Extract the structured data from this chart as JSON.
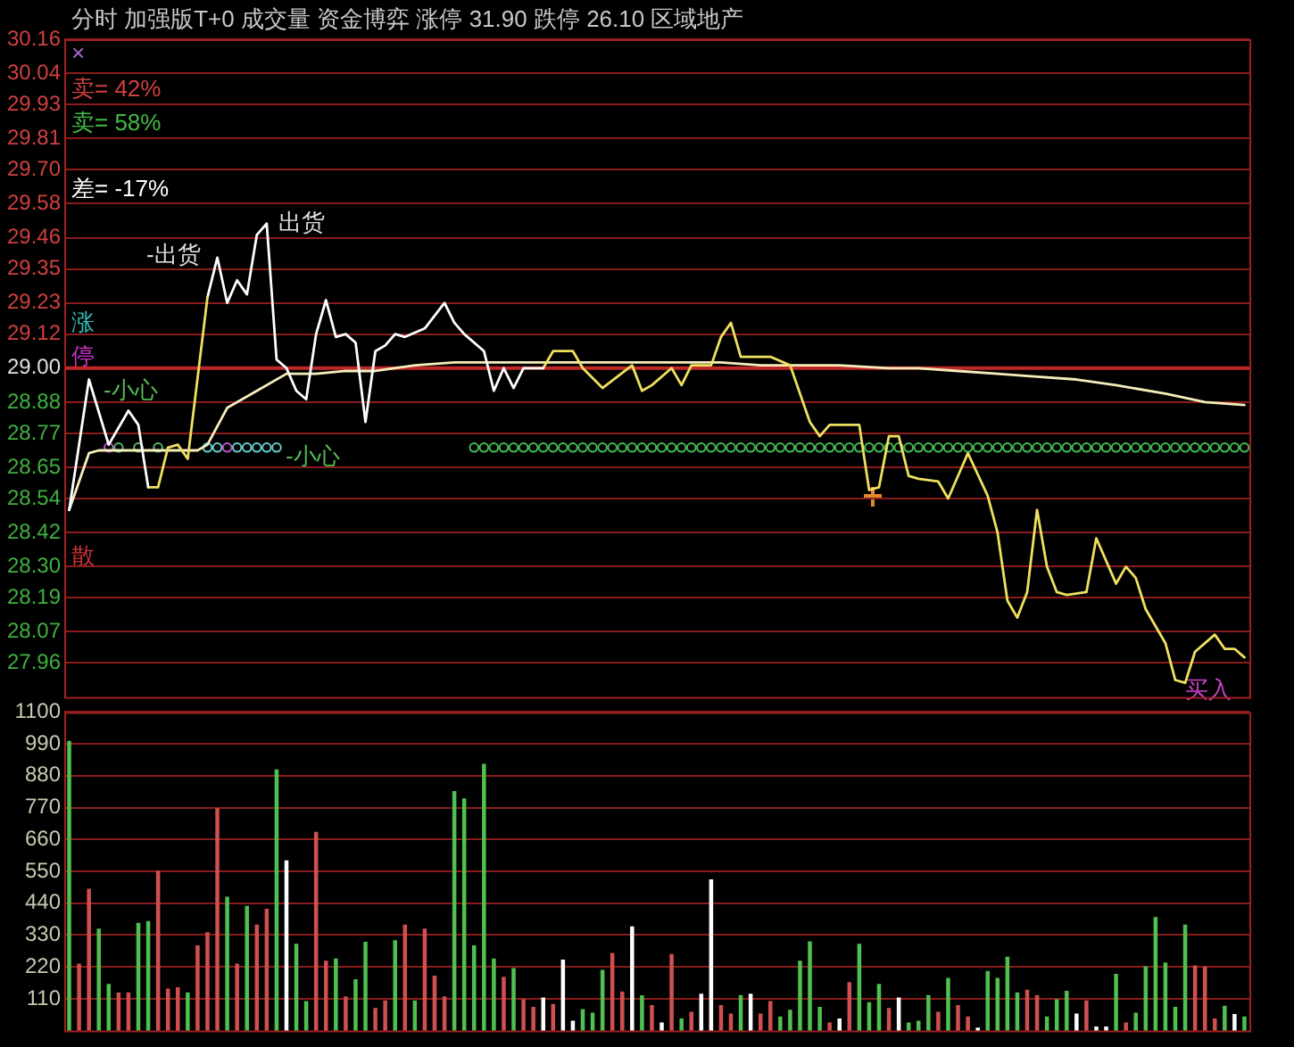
{
  "chart_data": [
    {
      "type": "line",
      "title": "分时 加强版T+0 成交量 资金博弈 涨停 31.90 跌停 26.10 区域地产",
      "categories": [
        null,
        null,
        null,
        null,
        null,
        null,
        null,
        null,
        null,
        null,
        null,
        null,
        null,
        null,
        null,
        null,
        null,
        null,
        null,
        null,
        null,
        null,
        null,
        null,
        null,
        null,
        null,
        null,
        null,
        null,
        null,
        null,
        null,
        null,
        null,
        null,
        null,
        null,
        null,
        null,
        null,
        null,
        null,
        null,
        null,
        null,
        null,
        null,
        null,
        null,
        null,
        null,
        null,
        null,
        null,
        null,
        null,
        null,
        null,
        null,
        null,
        null,
        null,
        null,
        null,
        null,
        null,
        null,
        null,
        null,
        null,
        null,
        null,
        null,
        null,
        null,
        null,
        null,
        null,
        null,
        null,
        null,
        null,
        null,
        null,
        null,
        null,
        null,
        null,
        null,
        null,
        null,
        null,
        null,
        null,
        null,
        null,
        null,
        null,
        null,
        null,
        null,
        null,
        null,
        null,
        null,
        null,
        null,
        null,
        null,
        null,
        null,
        null,
        null,
        null,
        null,
        null,
        null,
        null,
        null
      ],
      "series": [
        {
          "type": "line",
          "color": "#ffffff",
          "values": [
            28.5,
            null,
            28.96,
            null,
            28.73,
            null,
            28.85,
            28.8,
            28.58,
            null,
            null,
            null,
            null,
            null,
            null,
            null,
            null,
            null,
            null,
            null,
            null,
            null,
            null,
            null,
            null,
            null,
            null,
            null,
            null,
            null,
            null,
            null,
            null,
            null,
            null,
            null,
            null,
            null,
            null,
            null,
            null,
            null,
            null,
            null,
            null,
            null,
            null,
            null,
            null,
            null,
            null,
            null,
            null,
            null,
            null,
            null,
            null,
            null,
            null,
            null,
            null,
            null,
            null,
            null,
            null,
            null,
            null,
            null,
            null,
            null,
            null,
            null,
            null,
            null,
            null,
            null,
            null,
            null,
            null,
            null,
            null,
            null,
            null,
            null,
            null,
            null,
            null,
            null,
            null,
            null,
            null,
            null,
            null,
            null,
            null,
            null,
            null,
            null,
            null,
            null,
            null,
            null,
            null,
            null,
            null,
            null,
            null,
            null,
            null,
            null,
            null,
            null,
            null,
            null,
            null,
            null,
            null,
            null,
            null,
            null
          ]
        },
        {
          "type": "line",
          "color": "#f0e060",
          "values": [
            null,
            null,
            null,
            null,
            null,
            null,
            null,
            null,
            28.58,
            28.58,
            28.72,
            28.73,
            28.68,
            null,
            29.25,
            null,
            null,
            null,
            null,
            null,
            null,
            null,
            null,
            null,
            null,
            null,
            null,
            null,
            null,
            null,
            null,
            null,
            null,
            null,
            null,
            null,
            null,
            null,
            null,
            null,
            null,
            null,
            null,
            null,
            null,
            null,
            null,
            null,
            null,
            null,
            null,
            null,
            null,
            null,
            null,
            null,
            null,
            null,
            null,
            null,
            null,
            null,
            null,
            null,
            null,
            null,
            null,
            null,
            null,
            null,
            null,
            null,
            null,
            null,
            null,
            null,
            null,
            null,
            null,
            null,
            null,
            null,
            null,
            null,
            null,
            null,
            null,
            null,
            null,
            null,
            null,
            null,
            null,
            null,
            null,
            null,
            null,
            null,
            null,
            null,
            null,
            null,
            null,
            null,
            null,
            null,
            null,
            null,
            null,
            null,
            null,
            null,
            null,
            null,
            null,
            null,
            null,
            null,
            null,
            null
          ]
        },
        {
          "type": "line",
          "color": "#ffffff",
          "values": [
            null,
            null,
            null,
            null,
            null,
            null,
            null,
            null,
            null,
            null,
            null,
            null,
            null,
            null,
            29.25,
            29.39,
            29.23,
            29.31,
            29.26,
            29.47,
            29.51,
            29.03,
            29.0,
            28.92,
            28.89,
            29.12,
            29.24,
            29.11,
            29.12,
            29.09,
            28.81,
            29.06,
            29.08,
            29.12,
            29.11,
            null,
            29.14,
            null,
            29.23,
            29.16,
            29.12,
            null,
            29.06,
            28.92,
            29.0,
            28.93,
            29.0,
            null,
            29.0,
            null,
            null,
            null,
            null,
            null,
            null,
            null,
            null,
            null,
            null,
            null,
            null,
            null,
            null,
            null,
            null,
            null,
            null,
            null,
            null,
            null,
            null,
            null,
            null,
            null,
            null,
            null,
            null,
            null,
            null,
            null,
            null,
            null,
            null,
            null,
            null,
            null,
            null,
            null,
            null,
            null,
            null,
            null,
            null,
            null,
            null,
            null,
            null,
            null,
            null,
            null,
            null,
            null,
            null,
            null,
            null,
            null,
            null,
            null,
            null,
            null,
            null,
            null,
            null,
            null,
            null,
            null,
            null,
            null,
            null,
            null
          ]
        },
        {
          "type": "line",
          "color": "#f0e060",
          "values": [
            null,
            null,
            null,
            null,
            null,
            null,
            null,
            null,
            null,
            null,
            null,
            null,
            null,
            null,
            null,
            null,
            null,
            null,
            null,
            null,
            null,
            null,
            null,
            null,
            null,
            null,
            null,
            null,
            null,
            null,
            null,
            null,
            null,
            null,
            null,
            null,
            null,
            null,
            null,
            null,
            null,
            null,
            null,
            null,
            null,
            null,
            null,
            null,
            29.0,
            29.06,
            null,
            29.06,
            29.0,
            null,
            28.93,
            null,
            null,
            29.01,
            28.92,
            28.94,
            null,
            29.0,
            28.94,
            29.01,
            null,
            29.01,
            29.11,
            29.16,
            29.04,
            29.04,
            null,
            29.04,
            null,
            29.01,
            null,
            28.81,
            28.76,
            28.8,
            null,
            null,
            28.8,
            28.57,
            28.58,
            28.76,
            28.76,
            28.62,
            28.61,
            null,
            28.6,
            28.54,
            null,
            28.7,
            null,
            28.55,
            28.42,
            28.18,
            28.12,
            28.21,
            28.5,
            28.3,
            28.21,
            28.2,
            null,
            28.21,
            28.4,
            null,
            28.24,
            28.3,
            28.26,
            28.15,
            null,
            28.03,
            27.9,
            27.89,
            28.0,
            null,
            28.06,
            28.01,
            28.01,
            27.98
          ]
        },
        {
          "type": "line",
          "color": "#f5eebb",
          "values": [
            28.5,
            null,
            28.7,
            28.71,
            null,
            null,
            null,
            28.71,
            null,
            null,
            28.71,
            null,
            null,
            28.71,
            28.73,
            null,
            28.86,
            null,
            null,
            28.92,
            null,
            null,
            28.98,
            null,
            null,
            28.98,
            null,
            null,
            28.99,
            null,
            null,
            28.99,
            null,
            null,
            null,
            29.01,
            null,
            null,
            null,
            29.02,
            null,
            null,
            null,
            29.02,
            null,
            null,
            null,
            null,
            29.02,
            null,
            null,
            null,
            29.02,
            null,
            null,
            null,
            29.02,
            null,
            null,
            29.02,
            null,
            null,
            29.02,
            null,
            null,
            null,
            29.02,
            null,
            null,
            null,
            29.01,
            null,
            null,
            null,
            29.01,
            null,
            null,
            null,
            29.01,
            null,
            null,
            null,
            null,
            29.0,
            null,
            null,
            29.0,
            null,
            null,
            null,
            28.99,
            null,
            null,
            null,
            28.98,
            null,
            null,
            null,
            28.97,
            null,
            null,
            null,
            28.96,
            null,
            null,
            null,
            28.94,
            null,
            null,
            null,
            null,
            28.91,
            null,
            null,
            null,
            28.88,
            null,
            null,
            null,
            28.87
          ]
        },
        {
          "type": "scatter",
          "marker": "circle",
          "values": [
            null,
            null,
            null,
            null,
            28.72,
            28.72,
            null,
            28.72,
            null,
            28.72,
            null,
            null,
            null,
            null,
            28.72,
            28.72,
            28.72,
            28.72,
            28.72,
            28.72,
            28.72,
            28.72,
            null,
            null,
            null,
            null,
            null,
            null,
            null,
            null,
            null,
            null,
            null,
            null,
            null,
            null,
            null,
            null,
            null,
            null,
            null,
            null,
            null,
            null,
            null,
            null,
            null,
            null,
            null,
            null,
            null,
            null,
            null,
            null,
            null,
            null,
            null,
            null,
            null,
            null,
            null,
            null,
            null,
            null,
            null,
            null,
            null,
            null,
            null,
            null,
            null,
            null,
            null,
            null,
            null,
            null,
            null,
            null,
            null,
            null,
            null,
            null,
            null,
            null,
            null,
            null,
            null,
            null,
            null,
            null,
            null,
            null,
            null,
            null,
            null,
            null,
            null,
            null,
            null,
            null,
            null,
            null,
            null,
            null,
            null,
            null,
            null,
            null,
            null,
            null,
            null,
            null,
            null,
            null,
            null,
            null,
            null,
            null,
            null,
            null
          ],
          "colors": [
            null,
            null,
            null,
            null,
            "#bb55cc",
            "#55bb66",
            null,
            "#55bb66",
            null,
            "#55bb66",
            null,
            null,
            null,
            null,
            "#66cccc",
            "#66cccc",
            "#bb55cc",
            "#66cccc",
            "#66cccc",
            "#66cccc",
            "#66cccc",
            "#66cccc",
            null,
            null,
            null,
            null,
            null,
            null,
            null,
            null,
            null,
            null,
            null,
            null,
            null,
            null,
            null,
            null,
            null,
            null,
            null,
            null,
            null,
            null,
            null,
            null,
            null,
            null,
            null,
            null,
            null,
            null,
            null,
            null,
            null,
            null,
            null,
            null,
            null,
            null,
            null,
            null,
            null,
            null,
            null,
            null,
            null,
            null,
            null,
            null,
            null,
            null,
            null,
            null,
            null,
            null,
            null,
            null,
            null,
            null,
            null,
            null,
            null,
            null,
            null,
            null,
            null,
            null,
            null,
            null,
            null,
            null,
            null,
            null,
            null,
            null,
            null,
            null,
            null,
            null,
            null,
            null,
            null,
            null,
            null,
            null,
            null,
            null,
            null,
            null,
            null,
            null,
            null,
            null,
            null,
            null,
            null,
            null,
            null,
            null
          ]
        },
        {
          "type": "scatter",
          "marker": "circle",
          "color": "#44bb55",
          "values": [
            null,
            null,
            null,
            null,
            null,
            null,
            null,
            null,
            null,
            null,
            null,
            null,
            null,
            null,
            null,
            null,
            null,
            null,
            null,
            null,
            null,
            null,
            null,
            null,
            null,
            null,
            null,
            null,
            null,
            null,
            null,
            null,
            null,
            null,
            null,
            null,
            null,
            null,
            null,
            null,
            null,
            28.72,
            28.72,
            28.72,
            28.72,
            28.72,
            28.72,
            28.72,
            28.72,
            28.72,
            28.72,
            28.72,
            28.72,
            28.72,
            28.72,
            28.72,
            28.72,
            28.72,
            28.72,
            28.72,
            28.72,
            28.72,
            28.72,
            28.72,
            28.72,
            28.72,
            28.72,
            28.72,
            28.72,
            28.72,
            28.72,
            28.72,
            28.72,
            28.72,
            28.72,
            28.72,
            28.72,
            28.72,
            28.72,
            28.72,
            28.72,
            28.72,
            28.72,
            28.72,
            28.72,
            28.72,
            28.72,
            28.72,
            28.72,
            28.72,
            28.72,
            28.72,
            28.72,
            28.72,
            28.72,
            28.72,
            28.72,
            28.72,
            28.72,
            28.72,
            28.72,
            28.72,
            28.72,
            28.72,
            28.72,
            28.72,
            28.72,
            28.72,
            28.72,
            28.72,
            28.72,
            28.72,
            28.72,
            28.72,
            28.72,
            28.72,
            28.72,
            28.72,
            28.72,
            28.72
          ]
        }
      ],
      "ylim": [
        27.84,
        30.16
      ],
      "yticks": [
        30.16,
        30.04,
        29.93,
        29.81,
        {
          "value": 29.7,
          "label": "29.70"
        },
        29.58,
        29.46,
        29.35,
        29.23,
        29.12,
        {
          "value": 29.0,
          "label": "29.00"
        },
        28.88,
        28.77,
        28.65,
        28.54,
        28.42,
        {
          "value": 28.3,
          "label": "28.30"
        },
        28.19,
        28.07,
        27.96
      ],
      "ref_lines": [
        {
          "axis": "y",
          "value": 29.0,
          "color": "#c02828"
        }
      ],
      "grid": "y",
      "tick_labels": "y",
      "annotations": [
        "×",
        "卖= 42%",
        "卖= 58%",
        "差= -17%",
        "涨",
        "停",
        "散",
        "-小心",
        "-小心",
        "-出货",
        "出货",
        "买入"
      ]
    },
    {
      "type": "bar",
      "categories": [
        null,
        null,
        null,
        null,
        null,
        null,
        null,
        null,
        null,
        null,
        null,
        null,
        null,
        null,
        null,
        null,
        null,
        null,
        null,
        null,
        null,
        null,
        null,
        null,
        null,
        null,
        null,
        null,
        null,
        null,
        null,
        null,
        null,
        null,
        null,
        null,
        null,
        null,
        null,
        null,
        null,
        null,
        null,
        null,
        null,
        null,
        null,
        null,
        null,
        null,
        null,
        null,
        null,
        null,
        null,
        null,
        null,
        null,
        null,
        null,
        null,
        null,
        null,
        null,
        null,
        null,
        null,
        null,
        null,
        null,
        null,
        null,
        null,
        null,
        null,
        null,
        null,
        null,
        null,
        null,
        null,
        null,
        null,
        null,
        null,
        null,
        null,
        null,
        null,
        null,
        null,
        null,
        null,
        null,
        null,
        null,
        null,
        null,
        null,
        null,
        null,
        null,
        null,
        null,
        null,
        null,
        null,
        null,
        null,
        null,
        null,
        null,
        null,
        null,
        null,
        null,
        null,
        null,
        null,
        null
      ],
      "values": [
        998,
        229,
        488,
        350,
        159,
        130,
        130,
        370,
        376,
        550,
        143,
        148,
        130,
        292,
        338,
        766,
        460,
        229,
        429,
        364,
        419,
        900,
        586,
        298,
        100,
        684,
        239,
        247,
        116,
        175,
        305,
        76,
        102,
        310,
        364,
        102,
        350,
        188,
        116,
        825,
        800,
        292,
        919,
        247,
        184,
        214,
        106,
        80,
        112,
        90,
        243,
        32,
        72,
        60,
        208,
        266,
        133,
        358,
        120,
        86,
        26,
        262,
        40,
        63,
        125,
        520,
        86,
        57,
        121,
        125,
        57,
        100,
        47,
        70,
        239,
        306,
        80,
        26,
        40,
        165,
        298,
        96,
        159,
        76,
        112,
        26,
        32,
        121,
        63,
        180,
        86,
        47,
        8,
        204,
        180,
        253,
        130,
        139,
        121,
        47,
        106,
        135,
        57,
        102,
        12,
        12,
        194,
        26,
        60,
        220,
        390,
        233,
        80,
        364,
        223,
        219,
        40,
        84,
        55,
        47
      ],
      "colors": [
        "#50c050",
        "#d05050",
        "#d05050",
        "#50c050",
        "#50c050",
        "#d05050",
        "#d05050",
        "#50c050",
        "#50c050",
        "#d05050",
        "#d05050",
        "#d05050",
        "#50c050",
        "#d05050",
        "#d05050",
        "#d05050",
        "#50c050",
        "#d05050",
        "#50c050",
        "#d05050",
        "#d05050",
        "#50c050",
        "#ffffff",
        "#50c050",
        "#50c050",
        "#d05050",
        "#d05050",
        "#50c050",
        "#d05050",
        "#50c050",
        "#50c050",
        "#d05050",
        "#d05050",
        "#50c050",
        "#d05050",
        "#50c050",
        "#d05050",
        "#d05050",
        "#d05050",
        "#50c050",
        "#50c050",
        "#50c050",
        "#50c050",
        "#50c050",
        "#d05050",
        "#50c050",
        "#d05050",
        "#d05050",
        "#ffffff",
        "#d05050",
        "#ffffff",
        "#ffffff",
        "#50c050",
        "#50c050",
        "#50c050",
        "#d05050",
        "#d05050",
        "#ffffff",
        "#50c050",
        "#d05050",
        "#ffffff",
        "#d05050",
        "#50c050",
        "#d05050",
        "#ffffff",
        "#ffffff",
        "#d05050",
        "#d05050",
        "#50c050",
        "#ffffff",
        "#d05050",
        "#d05050",
        "#50c050",
        "#50c050",
        "#50c050",
        "#50c050",
        "#50c050",
        "#d05050",
        "#ffffff",
        "#d05050",
        "#50c050",
        "#50c050",
        "#50c050",
        "#d05050",
        "#ffffff",
        "#50c050",
        "#50c050",
        "#50c050",
        "#d05050",
        "#50c050",
        "#d05050",
        "#d05050",
        "#ffffff",
        "#50c050",
        "#50c050",
        "#50c050",
        "#50c050",
        "#d05050",
        "#d05050",
        "#50c050",
        "#50c050",
        "#50c050",
        "#ffffff",
        "#d05050",
        "#ffffff",
        "#ffffff",
        "#50c050",
        "#d05050",
        "#50c050",
        "#50c050",
        "#50c050",
        "#50c050",
        "#50c050",
        "#50c050",
        "#d05050",
        "#d05050",
        "#d05050",
        "#50c050",
        "#ffffff",
        "#50c050"
      ],
      "ylim": [
        0,
        1100
      ],
      "yticks": [
        110,
        220,
        330,
        440,
        550,
        660,
        770,
        880,
        990,
        1100
      ],
      "grid": "y",
      "tick_labels": "y"
    }
  ]
}
